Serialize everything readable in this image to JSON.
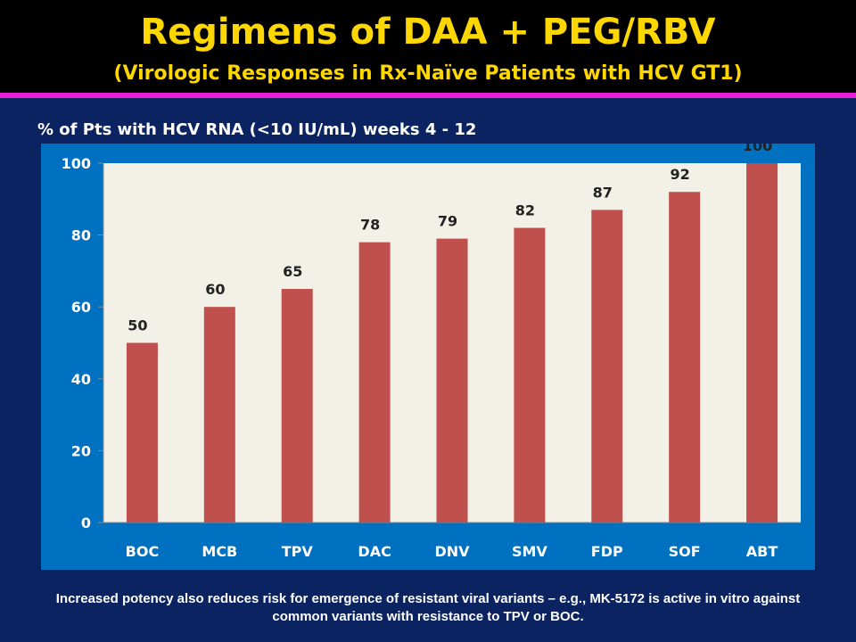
{
  "slide": {
    "title": "Regimens of DAA + PEG/RBV",
    "subtitle": "(Virologic Responses in Rx-Naïve Patients with HCV GT1)",
    "footnote": "Increased potency also reduces risk for emergence of resistant viral variants – e.g., MK-5172 is active in vitro against common variants with resistance to TPV or BOC.",
    "colors": {
      "background": "#0b2461",
      "header": "#000000",
      "title_text": "#ffd700",
      "accent_rule": "#e81eda",
      "chart_frame": "#0070c0",
      "plot_area": "#f2f0e7",
      "bar": "#c0504d"
    }
  },
  "chart_data": {
    "type": "bar",
    "title": "% of Pts with HCV RNA (<10 IU/mL) weeks 4 - 12",
    "xlabel": "",
    "ylabel": "",
    "categories": [
      "BOC",
      "MCB",
      "TPV",
      "DAC",
      "DNV",
      "SMV",
      "FDP",
      "SOF",
      "ABT"
    ],
    "values": [
      50,
      60,
      65,
      78,
      79,
      82,
      87,
      92,
      100
    ],
    "data_labels": [
      "50",
      "60",
      "65",
      "78",
      "79",
      "82",
      "87",
      "92",
      "100"
    ],
    "ylim": [
      0,
      100
    ],
    "yticks": [
      0,
      20,
      40,
      60,
      80,
      100
    ],
    "grid": false,
    "legend": "none"
  }
}
